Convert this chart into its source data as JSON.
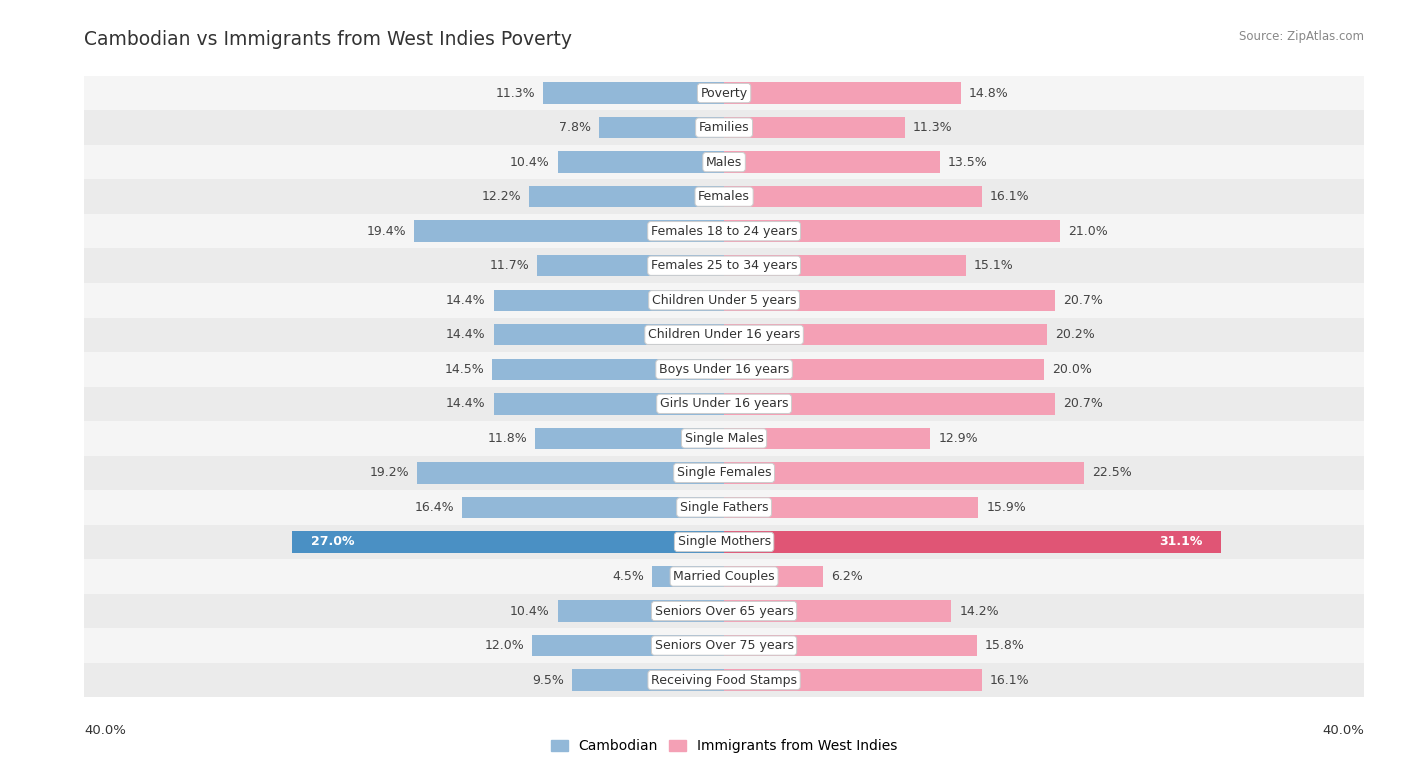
{
  "title": "Cambodian vs Immigrants from West Indies Poverty",
  "source": "Source: ZipAtlas.com",
  "categories": [
    "Poverty",
    "Families",
    "Males",
    "Females",
    "Females 18 to 24 years",
    "Females 25 to 34 years",
    "Children Under 5 years",
    "Children Under 16 years",
    "Boys Under 16 years",
    "Girls Under 16 years",
    "Single Males",
    "Single Females",
    "Single Fathers",
    "Single Mothers",
    "Married Couples",
    "Seniors Over 65 years",
    "Seniors Over 75 years",
    "Receiving Food Stamps"
  ],
  "cambodian": [
    11.3,
    7.8,
    10.4,
    12.2,
    19.4,
    11.7,
    14.4,
    14.4,
    14.5,
    14.4,
    11.8,
    19.2,
    16.4,
    27.0,
    4.5,
    10.4,
    12.0,
    9.5
  ],
  "west_indies": [
    14.8,
    11.3,
    13.5,
    16.1,
    21.0,
    15.1,
    20.7,
    20.2,
    20.0,
    20.7,
    12.9,
    22.5,
    15.9,
    31.1,
    6.2,
    14.2,
    15.8,
    16.1
  ],
  "xlim": 40.0,
  "cambodian_color": "#92b8d8",
  "west_indies_color": "#f4a0b5",
  "highlight_color_cambodian": "#4a90c4",
  "highlight_color_west_indies": "#e05575",
  "bar_height": 0.62,
  "row_bg_even": "#f5f5f5",
  "row_bg_odd": "#ebebeb",
  "label_fontsize": 9.0,
  "value_fontsize": 9.0,
  "title_fontsize": 13.5,
  "source_fontsize": 8.5,
  "legend_fontsize": 10.0
}
